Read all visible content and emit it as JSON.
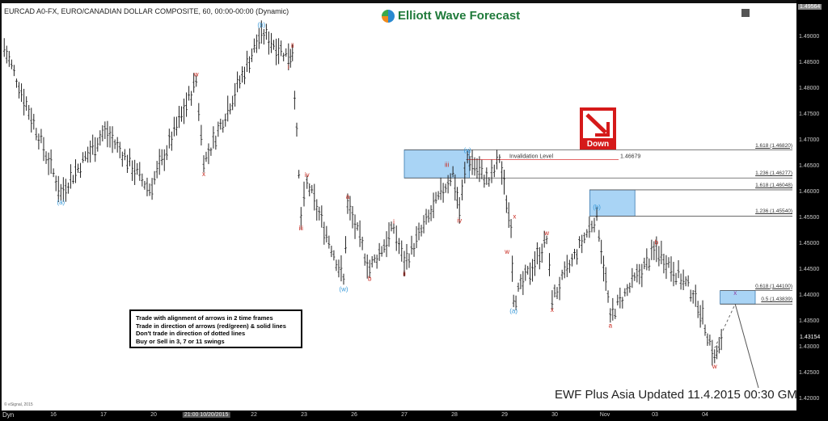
{
  "header": {
    "title": "EURCAD A0-FX, EURO/CANADIAN DOLLAR COMPOSITE, 60, 00:00-00:00 (Dynamic)",
    "logo": "Elliott Wave Forecast"
  },
  "chart_data": {
    "type": "bar",
    "ylim": [
      1.4182,
      1.4958
    ],
    "yticks": [
      "1.49000",
      "1.48500",
      "1.48000",
      "1.47500",
      "1.47000",
      "1.46500",
      "1.46000",
      "1.45500",
      "1.45000",
      "1.44500",
      "1.44000",
      "1.43500",
      "1.43000",
      "1.42500",
      "1.42000"
    ],
    "xticks": [
      {
        "label": "16",
        "pos": 1
      },
      {
        "label": "17",
        "pos": 2
      },
      {
        "label": "20",
        "pos": 3
      },
      {
        "label": "21:00 10/20/2015",
        "pos": 4.05,
        "highlight": true
      },
      {
        "label": "22",
        "pos": 5
      },
      {
        "label": "23",
        "pos": 6
      },
      {
        "label": "26",
        "pos": 7
      },
      {
        "label": "27",
        "pos": 8
      },
      {
        "label": "28",
        "pos": 9
      },
      {
        "label": "29",
        "pos": 10
      },
      {
        "label": "30",
        "pos": 11
      },
      {
        "label": "Nov",
        "pos": 12
      },
      {
        "label": "03",
        "pos": 13
      },
      {
        "label": "04",
        "pos": 14
      }
    ],
    "last_price": "1.43154",
    "top_price": "1.49564",
    "swings": [
      [
        0.02,
        1.488
      ],
      [
        1.15,
        1.46
      ],
      [
        2.03,
        1.472
      ],
      [
        2.92,
        1.4605
      ],
      [
        3.85,
        1.4815
      ],
      [
        4.0,
        1.4655
      ],
      [
        5.15,
        1.491
      ],
      [
        5.69,
        1.4862
      ],
      [
        5.77,
        1.487
      ],
      [
        5.94,
        1.455
      ],
      [
        6.06,
        1.462
      ],
      [
        6.79,
        1.4432
      ],
      [
        6.87,
        1.4578
      ],
      [
        7.31,
        1.4452
      ],
      [
        7.79,
        1.453
      ],
      [
        8.0,
        1.4462
      ],
      [
        8.97,
        1.464
      ],
      [
        9.1,
        1.4565
      ],
      [
        9.26,
        1.4668
      ],
      [
        9.69,
        1.462
      ],
      [
        9.9,
        1.4665
      ],
      [
        10.13,
        1.453
      ],
      [
        10.18,
        1.439
      ],
      [
        10.84,
        1.4508
      ],
      [
        10.95,
        1.4392
      ],
      [
        11.84,
        1.4558
      ],
      [
        12.11,
        1.4362
      ],
      [
        13.03,
        1.449
      ],
      [
        13.81,
        1.44
      ],
      [
        14.19,
        1.4283
      ],
      [
        14.37,
        1.4315
      ]
    ],
    "wave_labels": [
      {
        "text": "(a)",
        "pos": 1.15,
        "price": 1.46,
        "color": "blue",
        "below": true
      },
      {
        "text": "w",
        "pos": 3.85,
        "price": 1.4815,
        "color": "red",
        "below": false
      },
      {
        "text": "x",
        "pos": 4.0,
        "price": 1.4655,
        "color": "red",
        "below": true
      },
      {
        "text": "(b)",
        "pos": 5.15,
        "price": 1.491,
        "color": "blue",
        "below": false
      },
      {
        "text": "i",
        "pos": 5.69,
        "price": 1.4862,
        "color": "red",
        "below": true
      },
      {
        "text": "ii",
        "pos": 5.77,
        "price": 1.487,
        "color": "red",
        "below": false
      },
      {
        "text": "iii",
        "pos": 5.94,
        "price": 1.455,
        "color": "red",
        "below": true
      },
      {
        "text": "iv",
        "pos": 6.06,
        "price": 1.462,
        "color": "red",
        "below": false
      },
      {
        "text": "(w)",
        "pos": 6.79,
        "price": 1.4432,
        "color": "blue",
        "below": true
      },
      {
        "text": "a",
        "pos": 6.87,
        "price": 1.4578,
        "color": "red",
        "below": false
      },
      {
        "text": "b",
        "pos": 7.31,
        "price": 1.4452,
        "color": "red",
        "below": true
      },
      {
        "text": "i",
        "pos": 7.79,
        "price": 1.453,
        "color": "red",
        "below": false
      },
      {
        "text": "ii",
        "pos": 8.0,
        "price": 1.4462,
        "color": "red",
        "below": true
      },
      {
        "text": "iii",
        "pos": 8.85,
        "price": 1.464,
        "color": "red",
        "below": false
      },
      {
        "text": "iv",
        "pos": 9.1,
        "price": 1.4565,
        "color": "red",
        "below": true
      },
      {
        "text": "(x)",
        "pos": 9.26,
        "price": 1.4668,
        "color": "blue",
        "below": false
      },
      {
        "text": "x",
        "pos": 10.2,
        "price": 1.454,
        "color": "red",
        "below": false
      },
      {
        "text": "w",
        "pos": 10.05,
        "price": 1.4505,
        "color": "red",
        "below": true
      },
      {
        "text": "(a)",
        "pos": 10.18,
        "price": 1.439,
        "color": "blue",
        "below": true
      },
      {
        "text": "w",
        "pos": 10.84,
        "price": 1.4508,
        "color": "red",
        "below": false
      },
      {
        "text": "x",
        "pos": 10.95,
        "price": 1.4392,
        "color": "red",
        "below": true
      },
      {
        "text": "(b)",
        "pos": 11.84,
        "price": 1.4558,
        "color": "blue",
        "below": false
      },
      {
        "text": "a",
        "pos": 12.11,
        "price": 1.4362,
        "color": "red",
        "below": true
      },
      {
        "text": "b",
        "pos": 13.03,
        "price": 1.449,
        "color": "red",
        "below": false
      },
      {
        "text": "w",
        "pos": 14.19,
        "price": 1.4283,
        "color": "red",
        "below": true
      },
      {
        "text": "x",
        "pos": 14.6,
        "price": 1.4392,
        "color": "purple",
        "below": false
      }
    ],
    "fib_levels": [
      {
        "label": "1.618 (1.46820)",
        "price": 1.4682,
        "from": 8.0
      },
      {
        "label": "1.236 (1.46277)",
        "price": 1.46277,
        "from": 8.0
      },
      {
        "label": "1.618 (1.46048)",
        "price": 1.46048,
        "from": 11.7
      },
      {
        "label": "1.236 (1.45540)",
        "price": 1.4554,
        "from": 11.7
      },
      {
        "label": "0.618 (1.44100)",
        "price": 1.441,
        "from": 14.3
      },
      {
        "label": "0.5 (1.43839)",
        "price": 1.43839,
        "from": 14.3
      }
    ],
    "invalidation": {
      "label": "Invalidation Level",
      "value": "1.46679",
      "price": 1.46679
    },
    "colors": {
      "blue": "#3a9ad9",
      "red": "#c8281e",
      "purple": "#8a3aa0",
      "zone": "#a9d4f5"
    }
  },
  "legend": [
    "Trade with alignment of arrows in 2 time frames",
    "Trade in direction of arrows (red/green) & solid lines",
    "Don't trade in direction of dotted lines",
    "Buy or Sell in 3, 7 or 11 swings"
  ],
  "signal": {
    "label": "Down",
    "icon": "arrow-down-right-icon"
  },
  "footer": "EWF Plus Asia  Updated 11.4.2015 00:30 GMT",
  "copyright": "© eSignal, 2015",
  "toolbar": {
    "dyn": "Dyn"
  }
}
